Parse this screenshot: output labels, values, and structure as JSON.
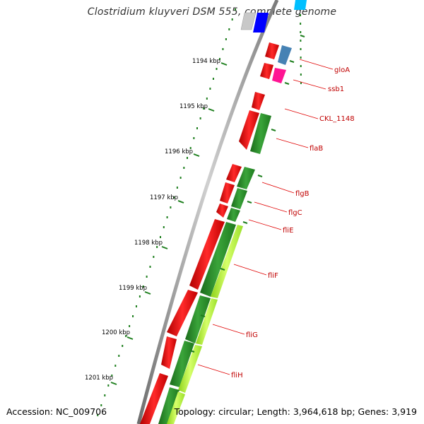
{
  "title": "Clostridium kluyveri DSM 555, complete genome",
  "footer": {
    "accession": "Accession: NC_009706",
    "topology": "Topology: circular; Length: 3,964,618 bp; Genes: 3,919"
  },
  "ticks": [
    {
      "label": "1194 kbp"
    },
    {
      "label": "1195 kbp"
    },
    {
      "label": "1196 kbp"
    },
    {
      "label": "1197 kbp"
    },
    {
      "label": "1198 kbp"
    },
    {
      "label": "1199 kbp"
    },
    {
      "label": "1200 kbp"
    },
    {
      "label": "1201 kbp"
    }
  ],
  "genes": [
    {
      "label": "gloA"
    },
    {
      "label": "ssb1"
    },
    {
      "label": "CKL_1148"
    },
    {
      "label": "flaB"
    },
    {
      "label": "flgB"
    },
    {
      "label": "flgC"
    },
    {
      "label": "fliE"
    },
    {
      "label": "fliF"
    },
    {
      "label": "fliG"
    },
    {
      "label": "fliH"
    }
  ],
  "colors": {
    "backbone": "#8c8c8c",
    "feature_red": "#ff0000",
    "feature_green": "#2e8b2e",
    "feature_lime": "#adff2f",
    "feature_blue": "#0000ff",
    "feature_steelblue": "#4682b4",
    "feature_pink": "#ff1493",
    "feature_cyan": "#00bfff",
    "feature_gray": "#c0c0c0",
    "tick_green": "#1e7f1e",
    "label_red": "#c00000"
  }
}
